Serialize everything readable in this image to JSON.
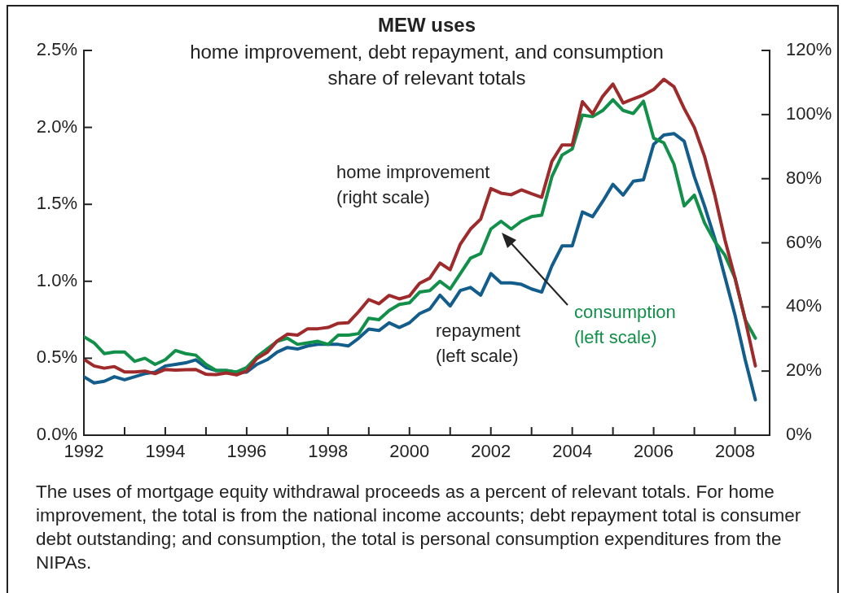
{
  "chart_data": {
    "type": "line",
    "title": "MEW uses",
    "subtitle": "home improvement, debt repayment, and consumption share of relevant totals",
    "annotations": [
      "The uses of mortgage equity withdrawal proceeds as a percent of relevant totals. For home improvement, the total is from the national income accounts; debt repayment total is consumer debt outstanding; and consumption, the total is personal consumption expenditures from the NIPAs."
    ],
    "x": [
      1992,
      1992.25,
      1992.5,
      1992.75,
      1993,
      1993.25,
      1993.5,
      1993.75,
      1994,
      1994.25,
      1994.5,
      1994.75,
      1995,
      1995.25,
      1995.5,
      1995.75,
      1996,
      1996.25,
      1996.5,
      1996.75,
      1997,
      1997.25,
      1997.5,
      1997.75,
      1998,
      1998.25,
      1998.5,
      1998.75,
      1999,
      1999.25,
      1999.5,
      1999.75,
      2000,
      2000.25,
      2000.5,
      2000.75,
      2001,
      2001.25,
      2001.5,
      2001.75,
      2002,
      2002.25,
      2002.5,
      2002.75,
      2003,
      2003.25,
      2003.5,
      2003.75,
      2004,
      2004.25,
      2004.5,
      2004.75,
      2005,
      2005.25,
      2005.5,
      2005.75,
      2006,
      2006.25,
      2006.5,
      2006.75,
      2007,
      2007.25,
      2007.5,
      2007.75,
      2008,
      2008.25,
      2008.5
    ],
    "series": [
      {
        "name": "home improvement (right scale)",
        "color": "#9e2a2b",
        "axis": "y2",
        "values": [
          23.7,
          21.6,
          20.9,
          21.4,
          19.7,
          19.7,
          20.0,
          19.2,
          20.5,
          20.3,
          20.4,
          20.5,
          19.0,
          18.9,
          19.4,
          18.8,
          20.0,
          23.9,
          25.8,
          29.4,
          31.5,
          31.2,
          33.2,
          33.2,
          33.6,
          34.9,
          35.1,
          38.5,
          42.3,
          41.0,
          43.6,
          42.5,
          43.4,
          47.4,
          49.0,
          53.7,
          51.6,
          59.6,
          64.3,
          67.4,
          76.9,
          75.5,
          75.0,
          76.5,
          75.3,
          74.2,
          85.4,
          90.5,
          90.5,
          104.0,
          100.2,
          105.7,
          109.5,
          103.6,
          104.9,
          106.1,
          107.8,
          111.0,
          108.7,
          101.9,
          96,
          87,
          75,
          61,
          49,
          36,
          21.6
        ]
      },
      {
        "name": "consumption (left scale)",
        "color": "#12904a",
        "axis": "y",
        "values": [
          0.64,
          0.6,
          0.53,
          0.54,
          0.54,
          0.48,
          0.5,
          0.46,
          0.49,
          0.55,
          0.53,
          0.52,
          0.46,
          0.42,
          0.42,
          0.41,
          0.44,
          0.51,
          0.56,
          0.61,
          0.63,
          0.59,
          0.6,
          0.61,
          0.59,
          0.65,
          0.65,
          0.66,
          0.76,
          0.75,
          0.81,
          0.85,
          0.86,
          0.93,
          0.94,
          1.0,
          0.95,
          1.05,
          1.15,
          1.18,
          1.34,
          1.39,
          1.34,
          1.39,
          1.42,
          1.43,
          1.68,
          1.82,
          1.86,
          2.08,
          2.07,
          2.11,
          2.18,
          2.11,
          2.09,
          2.17,
          1.93,
          1.9,
          1.76,
          1.49,
          1.56,
          1.38,
          1.26,
          1.17,
          1.02,
          0.75,
          0.63
        ]
      },
      {
        "name": "repayment (left scale)",
        "color": "#135d8c",
        "axis": "y",
        "values": [
          0.38,
          0.34,
          0.35,
          0.38,
          0.36,
          0.38,
          0.4,
          0.41,
          0.45,
          0.46,
          0.47,
          0.49,
          0.44,
          0.42,
          0.42,
          0.41,
          0.41,
          0.46,
          0.49,
          0.54,
          0.57,
          0.56,
          0.58,
          0.59,
          0.59,
          0.59,
          0.58,
          0.63,
          0.69,
          0.68,
          0.73,
          0.7,
          0.73,
          0.79,
          0.82,
          0.91,
          0.84,
          0.94,
          0.96,
          0.91,
          1.05,
          0.99,
          0.99,
          0.98,
          0.95,
          0.93,
          1.1,
          1.23,
          1.23,
          1.45,
          1.42,
          1.52,
          1.63,
          1.56,
          1.65,
          1.66,
          1.89,
          1.95,
          1.96,
          1.91,
          1.68,
          1.49,
          1.28,
          1.03,
          0.78,
          0.49,
          0.23
        ]
      }
    ],
    "xlim": [
      1992,
      2008.85
    ],
    "xticks": [
      1992,
      {
        "value": 1993,
        "label": null
      },
      1994,
      {
        "value": 1995,
        "label": null
      },
      1996,
      {
        "value": 1997,
        "label": null
      },
      1998,
      {
        "value": 1999,
        "label": null
      },
      2000,
      {
        "value": 2001,
        "label": null
      },
      2002,
      {
        "value": 2003,
        "label": null
      },
      2004,
      {
        "value": 2005,
        "label": null
      },
      2006,
      {
        "value": 2007,
        "label": null
      },
      2008
    ],
    "ylim": [
      0,
      2.5
    ],
    "yticks": [
      {
        "value": 0,
        "label": "0.0%"
      },
      {
        "value": 0.5,
        "label": "0.5%"
      },
      {
        "value": 1,
        "label": "1.0%"
      },
      {
        "value": 1.5,
        "label": "1.5%"
      },
      {
        "value": 2,
        "label": "2.0%"
      },
      {
        "value": 2.5,
        "label": "2.5%"
      }
    ],
    "y2lim": [
      0,
      120
    ],
    "y2ticks": [
      {
        "value": 0,
        "label": "0%"
      },
      {
        "value": 20,
        "label": "20%"
      },
      {
        "value": 40,
        "label": "40%"
      },
      {
        "value": 60,
        "label": "60%"
      },
      {
        "value": 80,
        "label": "80%"
      },
      {
        "value": 100,
        "label": "100%"
      },
      {
        "value": 120,
        "label": "120%"
      }
    ],
    "grid": false,
    "legend": false
  }
}
